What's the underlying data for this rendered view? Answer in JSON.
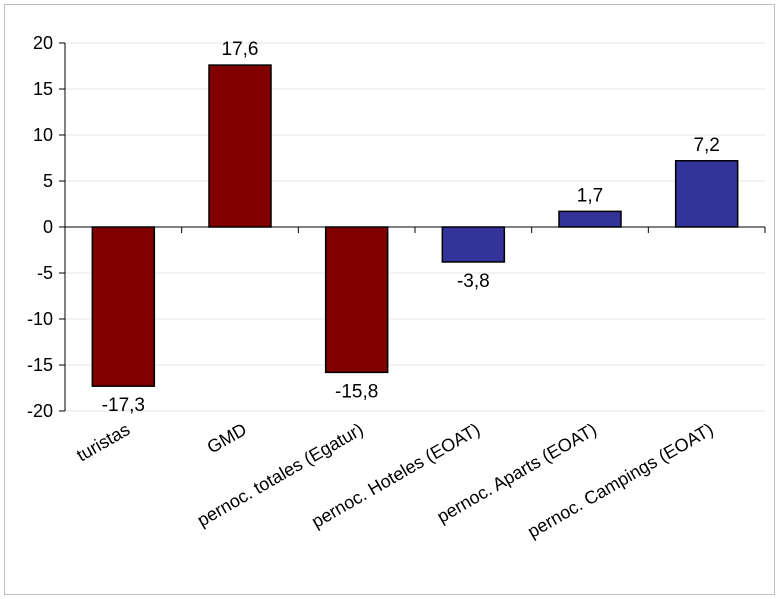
{
  "chart_data": {
    "type": "bar",
    "title": "",
    "xlabel": "",
    "ylabel": "",
    "ylim": [
      -20,
      20
    ],
    "yticks": [
      20,
      15,
      10,
      5,
      0,
      -5,
      -10,
      -15,
      -20
    ],
    "tick_labels": [
      "20",
      "15",
      "10",
      "5",
      "0",
      "-5",
      "-10",
      "-15",
      "-20"
    ],
    "grid": true,
    "legend": "none",
    "categories": [
      "turistas",
      "GMD",
      "pernoc. totales (Egatur)",
      "pernoc. Hoteles (EOAT)",
      "pernoc. Aparts (EOAT)",
      "pernoc. Campings (EOAT)"
    ],
    "values": [
      -17.3,
      17.6,
      -15.8,
      -3.8,
      1.7,
      7.2
    ],
    "data_labels": [
      "-17,3",
      "17,6",
      "-15,8",
      "-3,8",
      "1,7",
      "7,2"
    ],
    "bar_colors": [
      "#800000",
      "#800000",
      "#800000",
      "#333399",
      "#333399",
      "#333399"
    ],
    "gridline_color": "#e6e6e6",
    "axis_color": "#000000"
  }
}
